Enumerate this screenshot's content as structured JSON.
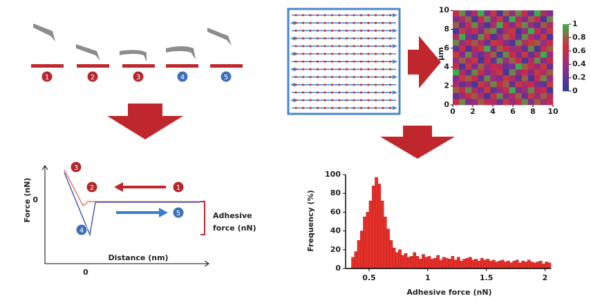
{
  "steps": {
    "labels": [
      "1",
      "2",
      "3",
      "4",
      "5"
    ]
  },
  "force_curve": {
    "y_axis_label": "Force (nN)",
    "x_axis_label": "Distance (nm)",
    "y_tick": "0",
    "x_tick": "0",
    "annotation": [
      "Adhesive",
      "force (nN)"
    ],
    "markers": [
      "3",
      "2",
      "1",
      "4",
      "5"
    ]
  },
  "chart_data": [
    {
      "type": "heatmap",
      "y_axis_label": "µm",
      "xlim": [
        0,
        10
      ],
      "ylim": [
        0,
        10
      ],
      "xticks": [
        0,
        2,
        4,
        6,
        8,
        10
      ],
      "yticks": [
        0,
        2,
        4,
        6,
        8,
        10
      ],
      "colorbar_lim": [
        0,
        1
      ],
      "colorbar_ticks": [
        0,
        0.2,
        0.4,
        0.6,
        0.8,
        1
      ],
      "colormap": [
        "#2a3c9e",
        "#8a2c8c",
        "#d62b3c",
        "#3aae4c"
      ],
      "values": [
        [
          0.6,
          0.9,
          0.2,
          0.5,
          1,
          0.3,
          0.7,
          0.1,
          0.8,
          0.4,
          0.9,
          0.6,
          0.2,
          1,
          0.5,
          0.3
        ],
        [
          0.3,
          0.5,
          0.8,
          0.1,
          0.6,
          0.9,
          0.4,
          0.7,
          0.2,
          1,
          0.5,
          0.3,
          0.8,
          0.6,
          0.1,
          0.9
        ],
        [
          0.8,
          0.2,
          0.6,
          0.9,
          0.4,
          0.1,
          0.5,
          1,
          0.6,
          0.3,
          0.7,
          0.9,
          0.4,
          0.2,
          0.8,
          0.5
        ],
        [
          0.1,
          0.7,
          0.4,
          0.6,
          0.3,
          0.8,
          0.9,
          0.2,
          0.5,
          0.7,
          0.1,
          0.4,
          1,
          0.6,
          0.3,
          0.7
        ],
        [
          0.5,
          1,
          0.3,
          0.2,
          0.9,
          0.6,
          0.1,
          0.4,
          0.8,
          0.6,
          0.2,
          0.9,
          0.5,
          0.3,
          0.7,
          0.1
        ],
        [
          0.9,
          0.4,
          0.6,
          0.8,
          0.5,
          0.2,
          0.7,
          0.6,
          0.3,
          0.1,
          0.9,
          0.5,
          0.7,
          0.8,
          0.4,
          0.6
        ],
        [
          0.2,
          0.6,
          0.1,
          0.5,
          0.7,
          1,
          0.3,
          0.8,
          0.6,
          0.4,
          0.5,
          0.2,
          0.9,
          0.1,
          0.6,
          0.8
        ],
        [
          0.7,
          0.3,
          0.9,
          0.4,
          0.2,
          0.5,
          0.8,
          0.1,
          0.9,
          0.6,
          0.3,
          0.7,
          0.2,
          0.5,
          1,
          0.4
        ],
        [
          0.4,
          0.8,
          0.5,
          0.7,
          0.1,
          0.6,
          0.2,
          0.9,
          0.4,
          0.8,
          0.6,
          0.1,
          0.5,
          0.9,
          0.3,
          0.6
        ],
        [
          0.6,
          0.1,
          0.7,
          0.3,
          0.8,
          0.4,
          0.6,
          0.5,
          0.2,
          0.3,
          1,
          0.8,
          0.6,
          0.4,
          0.7,
          0.2
        ],
        [
          1,
          0.5,
          0.2,
          0.9,
          0.6,
          0.3,
          0.5,
          0.7,
          0.1,
          0.9,
          0.4,
          0.6,
          0.3,
          0.7,
          0.5,
          0.8
        ],
        [
          0.3,
          0.7,
          0.8,
          0.6,
          0.2,
          0.9,
          0.4,
          0.3,
          0.7,
          0.5,
          0.2,
          0.8,
          0.1,
          0.6,
          0.9,
          0.4
        ],
        [
          0.5,
          0.2,
          0.4,
          0.1,
          0.7,
          0.5,
          0.9,
          0.6,
          0.8,
          0.2,
          0.7,
          0.5,
          0.6,
          0.3,
          0.2,
          0.7
        ],
        [
          0.8,
          0.6,
          0.9,
          0.5,
          0.3,
          0.7,
          0.2,
          0.4,
          0.6,
          1,
          0.3,
          0.4,
          0.9,
          0.5,
          0.6,
          0.1
        ],
        [
          0.2,
          0.4,
          0.6,
          0.8,
          0.5,
          0.1,
          0.6,
          0.9,
          0.3,
          0.5,
          0.8,
          0.2,
          0.7,
          0.4,
          0.8,
          0.5
        ],
        [
          0.6,
          0.9,
          0.3,
          0.4,
          0.8,
          0.6,
          0.5,
          0.2,
          0.7,
          0.4,
          0.6,
          0.9,
          0.3,
          0.8,
          0.4,
          0.6
        ]
      ]
    },
    {
      "type": "histogram",
      "x_axis_label": "Adhesive force (nN)",
      "y_axis_label": "Frequency (%)",
      "color": "#e8302a",
      "xlim": [
        0.3,
        2.05
      ],
      "ylim": [
        0,
        100
      ],
      "xticks": [
        0.5,
        1,
        1.5,
        2
      ],
      "yticks": [
        0,
        20,
        40,
        60,
        80,
        100
      ],
      "bins": [
        0.35,
        0.375,
        0.4,
        0.425,
        0.45,
        0.475,
        0.5,
        0.525,
        0.55,
        0.575,
        0.6,
        0.625,
        0.65,
        0.675,
        0.7,
        0.725,
        0.75,
        0.775,
        0.8,
        0.825,
        0.85,
        0.875,
        0.9,
        0.925,
        0.95,
        0.975,
        1,
        1.025,
        1.05,
        1.075,
        1.1,
        1.125,
        1.15,
        1.175,
        1.2,
        1.225,
        1.25,
        1.275,
        1.3,
        1.325,
        1.35,
        1.375,
        1.4,
        1.425,
        1.45,
        1.475,
        1.5,
        1.525,
        1.55,
        1.575,
        1.6,
        1.625,
        1.65,
        1.675,
        1.7,
        1.725,
        1.75,
        1.775,
        1.8,
        1.825,
        1.85,
        1.875,
        1.9,
        1.925,
        1.95,
        1.975,
        2,
        2.025,
        2.05
      ],
      "values": [
        12,
        18,
        30,
        40,
        55,
        60,
        72,
        88,
        97,
        90,
        72,
        55,
        42,
        30,
        22,
        17,
        20,
        14,
        16,
        12,
        13,
        17,
        13,
        10,
        15,
        12,
        13,
        10,
        11,
        14,
        9,
        12,
        11,
        10,
        13,
        9,
        12,
        8,
        10,
        11,
        12,
        9,
        10,
        8,
        11,
        9,
        10,
        8,
        9,
        7,
        8,
        9,
        7,
        8,
        6,
        8,
        9,
        6,
        8,
        7,
        9,
        7,
        6,
        7,
        8,
        5,
        7,
        6
      ]
    }
  ]
}
